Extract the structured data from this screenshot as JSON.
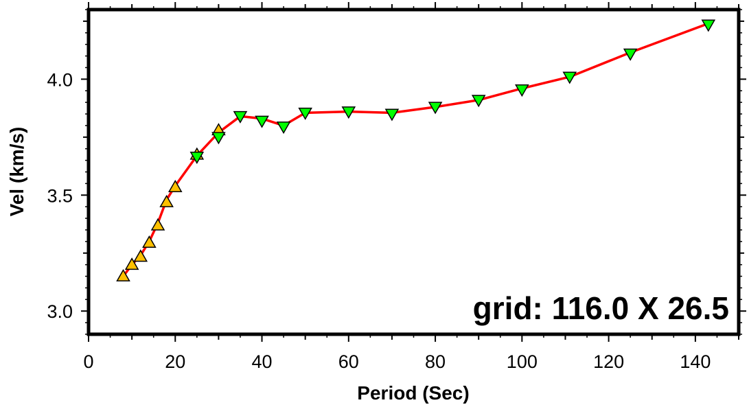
{
  "chart_data": {
    "type": "line",
    "title": "",
    "xlabel": "Period (Sec)",
    "ylabel": "Vel (km/s)",
    "xlim": [
      0,
      150
    ],
    "ylim": [
      2.9,
      4.3
    ],
    "x_ticks": [
      0,
      20,
      40,
      60,
      80,
      100,
      120,
      140
    ],
    "y_ticks": [
      3.0,
      3.5,
      4.0
    ],
    "y_tick_labels": [
      "3.0",
      "3.5",
      "4.0"
    ],
    "grid": false,
    "annotation": "grid: 116.0 X 26.5",
    "line_color": "#ff0000",
    "curve": {
      "x": [
        8,
        10,
        12,
        14,
        16,
        18,
        20,
        25,
        30,
        35,
        40,
        45,
        50,
        60,
        70,
        80,
        90,
        100,
        111,
        125,
        143
      ],
      "y": [
        3.15,
        3.2,
        3.24,
        3.3,
        3.38,
        3.48,
        3.54,
        3.67,
        3.77,
        3.84,
        3.83,
        3.8,
        3.855,
        3.86,
        3.855,
        3.88,
        3.91,
        3.96,
        4.01,
        4.115,
        4.24
      ]
    },
    "series": [
      {
        "marker": "triangle-up",
        "color": "#ffc000",
        "x": [
          8,
          10,
          12,
          14,
          16,
          18,
          20,
          25,
          30
        ],
        "y": [
          3.15,
          3.2,
          3.235,
          3.295,
          3.37,
          3.47,
          3.535,
          3.675,
          3.78
        ]
      },
      {
        "marker": "triangle-down",
        "color": "#00ff00",
        "x": [
          25,
          30,
          35,
          40,
          45,
          50,
          60,
          70,
          80,
          90,
          100,
          111,
          125,
          143
        ],
        "y": [
          3.665,
          3.75,
          3.84,
          3.82,
          3.795,
          3.855,
          3.86,
          3.85,
          3.88,
          3.91,
          3.955,
          4.01,
          4.11,
          4.235
        ]
      }
    ]
  }
}
